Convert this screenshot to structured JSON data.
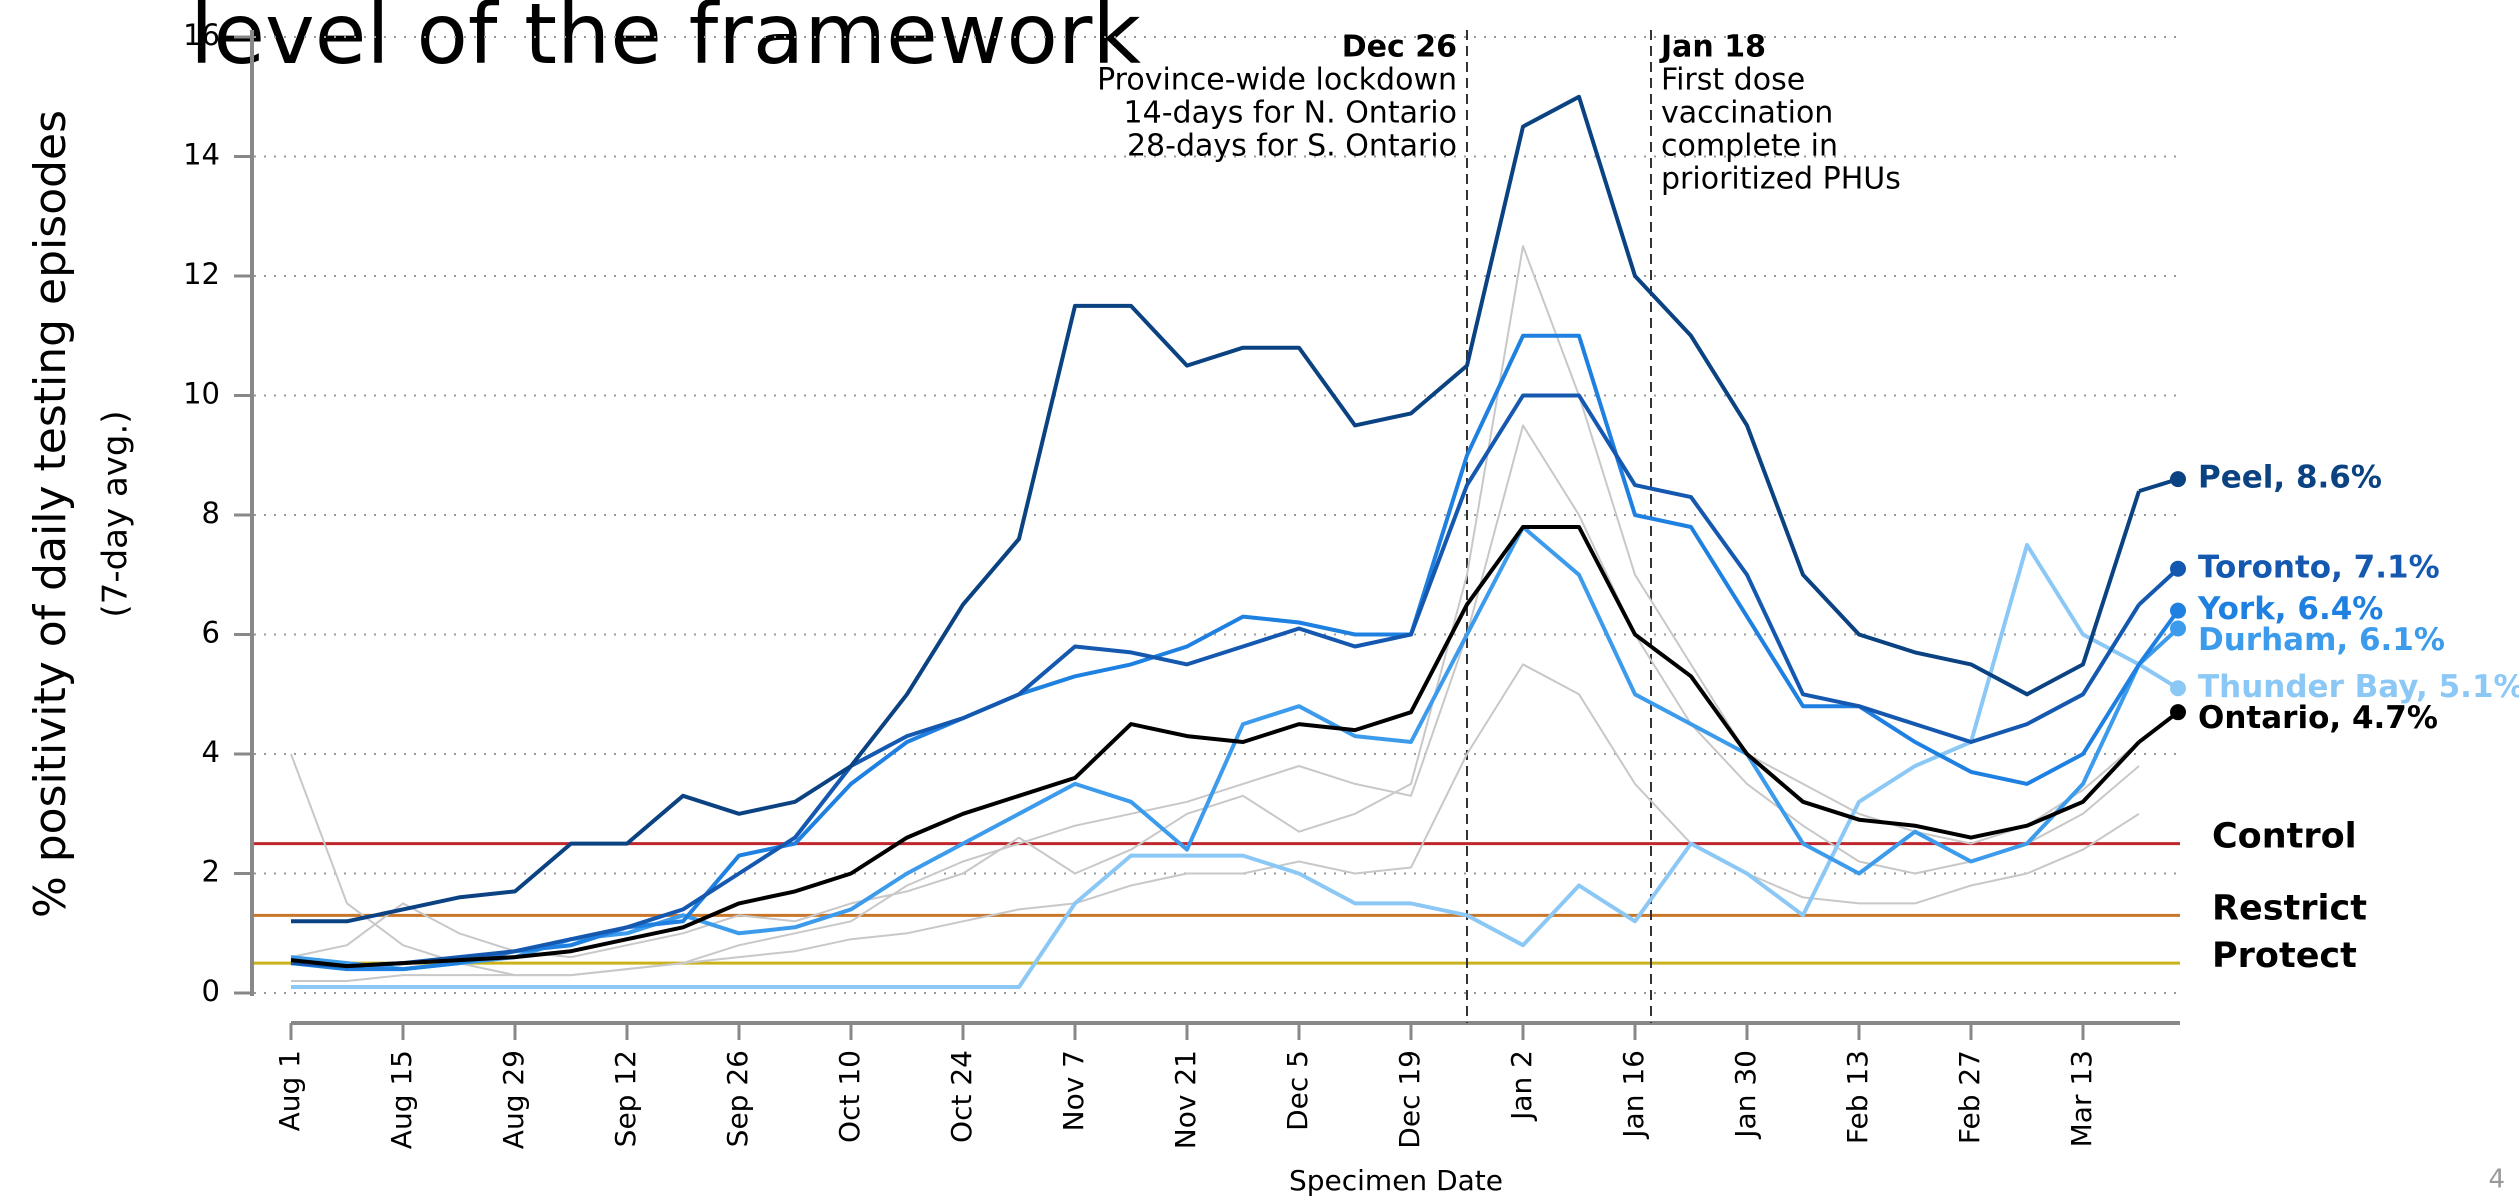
{
  "chart_data": {
    "type": "line",
    "title": "level of the framework",
    "y_label": "% positivity of daily testing episodes",
    "y_sublabel": "(7-day avg.)",
    "x_label": "Specimen Date",
    "page_number": "4",
    "ylim": [
      0,
      16
    ],
    "yticks": [
      0,
      2,
      4,
      6,
      8,
      10,
      12,
      14,
      16
    ],
    "grid": true,
    "categories": [
      "Aug 1",
      null,
      "Aug 15",
      null,
      "Aug 29",
      null,
      "Sep 12",
      null,
      "Sep 26",
      null,
      "Oct 10",
      null,
      "Oct 24",
      null,
      "Nov 7",
      null,
      "Nov 21",
      null,
      "Dec 5",
      null,
      "Dec 19",
      null,
      "Jan 2",
      null,
      "Jan 16",
      null,
      "Jan 30",
      null,
      "Feb 13",
      null,
      "Feb 27",
      null,
      "Mar 13",
      null
    ],
    "series": [
      {
        "color": "#c8c8c8",
        "values": [
          4.0,
          1.5,
          0.8,
          0.5,
          0.3,
          0.3,
          0.4,
          0.5,
          0.8,
          1.0,
          1.2,
          1.8,
          2.2,
          2.5,
          2.8,
          3.0,
          3.2,
          3.5,
          3.8,
          3.5,
          3.3,
          6.0,
          9.5,
          8.0,
          6.0,
          4.5,
          3.5,
          2.8,
          2.2,
          2.0,
          2.2,
          2.5,
          3.0,
          3.8
        ]
      },
      {
        "color": "#c8c8c8",
        "values": [
          0.2,
          0.2,
          0.3,
          0.3,
          0.3,
          0.3,
          0.4,
          0.5,
          0.6,
          0.7,
          0.9,
          1.0,
          1.2,
          1.4,
          1.5,
          1.8,
          2.0,
          2.0,
          2.2,
          2.0,
          2.1,
          4.0,
          5.5,
          5.0,
          3.5,
          2.5,
          2.0,
          1.6,
          1.5,
          1.5,
          1.8,
          2.0,
          2.4,
          3.0
        ]
      },
      {
        "color": "#c8c8c8",
        "values": [
          0.6,
          0.8,
          1.5,
          1.0,
          0.7,
          0.6,
          0.8,
          1.0,
          1.3,
          1.2,
          1.5,
          1.7,
          2.0,
          2.6,
          2.0,
          2.4,
          3.0,
          3.3,
          2.7,
          3.0,
          3.5,
          7.0,
          12.5,
          10.0,
          7.0,
          5.5,
          4.0,
          3.5,
          3.0,
          2.7,
          2.5,
          2.8,
          3.4,
          4.2
        ]
      },
      {
        "color": "#8cc8f5",
        "values": [
          0.1,
          0.1,
          0.1,
          0.1,
          0.1,
          0.1,
          0.1,
          0.1,
          0.1,
          0.1,
          0.1,
          0.1,
          0.1,
          0.1,
          1.5,
          2.3,
          2.3,
          2.3,
          2.0,
          1.5,
          1.5,
          1.3,
          0.8,
          1.8,
          1.2,
          2.5,
          2.0,
          1.3,
          3.2,
          3.8,
          4.2,
          7.5,
          6.0,
          5.5
        ],
        "end_value": 5.1,
        "end_label": "Thunder Bay, 5.1%"
      },
      {
        "color": "#3d9bec",
        "values": [
          0.6,
          0.5,
          0.4,
          0.5,
          0.6,
          0.9,
          1.0,
          1.3,
          1.0,
          1.1,
          1.4,
          2.0,
          2.5,
          3.0,
          3.5,
          3.2,
          2.4,
          4.5,
          4.8,
          4.3,
          4.2,
          6.0,
          7.8,
          7.0,
          5.0,
          4.5,
          4.0,
          2.5,
          2.0,
          2.7,
          2.2,
          2.5,
          3.5,
          5.5
        ],
        "end_value": 6.1,
        "end_label": "Durham, 6.1%"
      },
      {
        "color": "#1e80e0",
        "values": [
          0.5,
          0.4,
          0.4,
          0.5,
          0.7,
          0.8,
          1.1,
          1.2,
          2.3,
          2.5,
          3.5,
          4.2,
          4.6,
          5.0,
          5.3,
          5.5,
          5.8,
          6.3,
          6.2,
          6.0,
          6.0,
          9.0,
          11.0,
          11.0,
          8.0,
          7.8,
          6.3,
          4.8,
          4.8,
          4.2,
          3.7,
          3.5,
          4.0,
          5.5
        ],
        "end_value": 6.4,
        "end_label": "York, 6.4%"
      },
      {
        "color": "#1458b0",
        "values": [
          0.5,
          0.45,
          0.5,
          0.6,
          0.7,
          0.9,
          1.1,
          1.4,
          2.0,
          2.6,
          3.8,
          4.3,
          4.6,
          5.0,
          5.8,
          5.7,
          5.5,
          5.8,
          6.1,
          5.8,
          6.0,
          8.5,
          10.0,
          10.0,
          8.5,
          8.3,
          7.0,
          5.0,
          4.8,
          4.5,
          4.2,
          4.5,
          5.0,
          6.5
        ],
        "end_value": 7.1,
        "end_label": "Toronto, 7.1%"
      },
      {
        "color": "#0a4282",
        "values": [
          1.2,
          1.2,
          1.4,
          1.6,
          1.7,
          2.5,
          2.5,
          3.3,
          3.0,
          3.2,
          3.8,
          5.0,
          6.5,
          7.6,
          11.5,
          11.5,
          10.5,
          10.8,
          10.8,
          9.5,
          9.7,
          10.5,
          14.5,
          15.0,
          12.0,
          11.0,
          9.5,
          7.0,
          6.0,
          5.7,
          5.5,
          5.0,
          5.5,
          8.4
        ],
        "end_value": 8.6,
        "end_label": "Peel, 8.6%"
      },
      {
        "color": "#000000",
        "values": [
          0.55,
          0.45,
          0.5,
          0.55,
          0.6,
          0.7,
          0.9,
          1.1,
          1.5,
          1.7,
          2.0,
          2.6,
          3.0,
          3.3,
          3.6,
          4.5,
          4.3,
          4.2,
          4.5,
          4.4,
          4.7,
          6.5,
          7.8,
          7.8,
          6.0,
          5.3,
          4.0,
          3.2,
          2.9,
          2.8,
          2.6,
          2.8,
          3.2,
          4.2
        ],
        "end_value": 4.7,
        "end_label": "Ontario, 4.7%"
      }
    ],
    "thresholds": [
      {
        "label": "Control",
        "value": 2.5,
        "color": "#c0272d"
      },
      {
        "label": "Restrict",
        "value": 1.3,
        "color": "#c8762a"
      },
      {
        "label": "Protect",
        "value": 0.5,
        "color": "#c9b21a"
      }
    ],
    "annotations": [
      {
        "date": "Dec 26",
        "side": "left",
        "lines": [
          "Province-wide lockdown",
          "14-days for N. Ontario",
          "28-days for S. Ontario"
        ]
      },
      {
        "date": "Jan 18",
        "side": "right",
        "lines": [
          "First dose",
          "vaccination",
          "complete in",
          "prioritized PHUs"
        ]
      }
    ]
  }
}
